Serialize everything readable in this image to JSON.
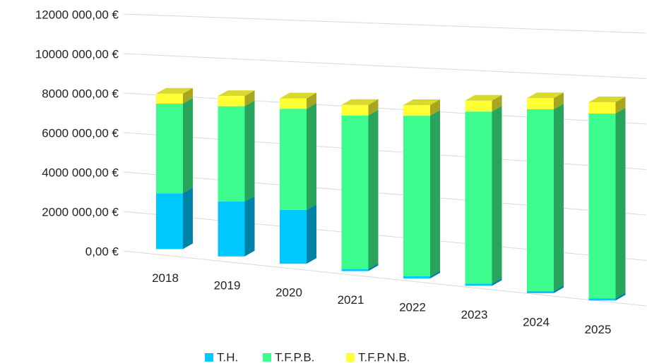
{
  "chart_data": {
    "type": "bar3d_stacked",
    "categories": [
      "2018",
      "2019",
      "2020",
      "2021",
      "2022",
      "2023",
      "2024",
      "2025"
    ],
    "series": [
      {
        "name": "T.H.",
        "color": "#00c8ff",
        "values": [
          2800000,
          2700000,
          2600000,
          100000,
          100000,
          100000,
          100000,
          100000
        ]
      },
      {
        "name": "T.F.P.B.",
        "color": "#3dfc8e",
        "values": [
          4500000,
          4700000,
          4900000,
          7300000,
          7500000,
          7900000,
          8200000,
          8200000
        ]
      },
      {
        "name": "T.F.P.N.B.",
        "color": "#ffff33",
        "values": [
          500000,
          500000,
          500000,
          500000,
          500000,
          500000,
          500000,
          500000
        ]
      }
    ],
    "ylim": [
      0,
      12000000
    ],
    "yticks": [
      {
        "value": 0,
        "label": "0,00 €"
      },
      {
        "value": 2000000,
        "label": "2000 000,00 €"
      },
      {
        "value": 4000000,
        "label": "4000 000,00 €"
      },
      {
        "value": 6000000,
        "label": "6000 000,00 €"
      },
      {
        "value": 8000000,
        "label": "8000 000,00 €"
      },
      {
        "value": 10000000,
        "label": "10000 000,00 €"
      },
      {
        "value": 12000000,
        "label": "12000 000,00 €"
      }
    ],
    "grid": true,
    "legend": "bottom"
  }
}
